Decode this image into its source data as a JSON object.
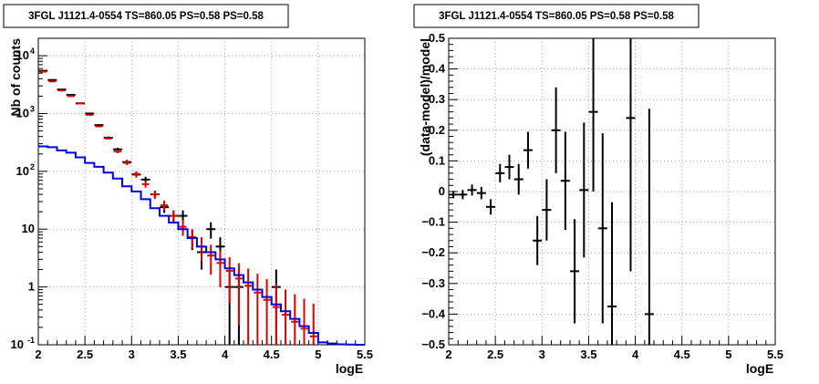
{
  "chart_data": [
    {
      "type": "histogram-errorbar",
      "title": "3FGL J1121.4-0554 TS=860.05 PS=0.58 PS=0.58",
      "xlabel": "logE",
      "ylabel": "Nb of counts",
      "yscale": "log",
      "xlim": [
        2,
        5.5
      ],
      "ylim": [
        0.1,
        20000
      ],
      "grid": true,
      "x_ticks": [
        {
          "v": 2,
          "label": "2"
        },
        {
          "v": 2.5,
          "label": "2.5"
        },
        {
          "v": 3,
          "label": "3"
        },
        {
          "v": 3.5,
          "label": "3.5"
        },
        {
          "v": 4,
          "label": "4"
        },
        {
          "v": 4.5,
          "label": "4.5"
        },
        {
          "v": 5,
          "label": "5"
        },
        {
          "v": 5.5,
          "label": "5.5"
        }
      ],
      "y_ticks": [
        {
          "v": 0.1,
          "label": "10",
          "exp": "-1"
        },
        {
          "v": 1,
          "label": "1",
          "exp": ""
        },
        {
          "v": 10,
          "label": "10",
          "exp": ""
        },
        {
          "v": 100,
          "label": "10",
          "exp": "2"
        },
        {
          "v": 1000,
          "label": "10",
          "exp": "3"
        },
        {
          "v": 10000,
          "label": "10",
          "exp": "4"
        }
      ],
      "series": [
        {
          "kind": "data-points",
          "color": "#000000",
          "points": [
            {
              "x": 2.05,
              "y": 5500
            },
            {
              "x": 2.15,
              "y": 3800
            },
            {
              "x": 2.25,
              "y": 2600
            },
            {
              "x": 2.35,
              "y": 2100
            },
            {
              "x": 2.45,
              "y": 1500
            },
            {
              "x": 2.55,
              "y": 1000
            },
            {
              "x": 2.65,
              "y": 630
            },
            {
              "x": 2.75,
              "y": 380
            },
            {
              "x": 2.85,
              "y": 240
            },
            {
              "x": 2.95,
              "y": 145
            },
            {
              "x": 3.05,
              "y": 88
            },
            {
              "x": 3.15,
              "y": 72
            },
            {
              "x": 3.25,
              "y": 40
            },
            {
              "x": 3.35,
              "y": 24
            },
            {
              "x": 3.45,
              "y": 17
            },
            {
              "x": 3.55,
              "y": 17
            },
            {
              "x": 3.65,
              "y": 7
            },
            {
              "x": 3.75,
              "y": 4
            },
            {
              "x": 3.85,
              "y": 10
            },
            {
              "x": 3.95,
              "y": 5
            },
            {
              "x": 4.05,
              "y": 1
            },
            {
              "x": 4.15,
              "y": 1
            },
            {
              "x": 4.55,
              "y": 1
            }
          ]
        },
        {
          "kind": "model-points",
          "color": "#dd0000",
          "points": [
            {
              "x": 2.05,
              "y": 5300
            },
            {
              "x": 2.15,
              "y": 3600
            },
            {
              "x": 2.25,
              "y": 2500
            },
            {
              "x": 2.35,
              "y": 2000
            },
            {
              "x": 2.45,
              "y": 1500
            },
            {
              "x": 2.55,
              "y": 950
            },
            {
              "x": 2.65,
              "y": 600
            },
            {
              "x": 2.75,
              "y": 370
            },
            {
              "x": 2.85,
              "y": 220
            },
            {
              "x": 2.95,
              "y": 140
            },
            {
              "x": 3.05,
              "y": 90
            },
            {
              "x": 3.15,
              "y": 60
            },
            {
              "x": 3.25,
              "y": 40
            },
            {
              "x": 3.35,
              "y": 26
            },
            {
              "x": 3.45,
              "y": 17
            },
            {
              "x": 3.55,
              "y": 11
            },
            {
              "x": 3.65,
              "y": 7.3
            },
            {
              "x": 3.75,
              "y": 5
            },
            {
              "x": 3.85,
              "y": 3.5
            },
            {
              "x": 3.95,
              "y": 2.6
            },
            {
              "x": 4.05,
              "y": 1.9
            },
            {
              "x": 4.15,
              "y": 1.4
            },
            {
              "x": 4.25,
              "y": 1.05
            },
            {
              "x": 4.35,
              "y": 0.8
            },
            {
              "x": 4.45,
              "y": 0.6
            },
            {
              "x": 4.55,
              "y": 0.45
            },
            {
              "x": 4.65,
              "y": 0.33
            },
            {
              "x": 4.75,
              "y": 0.25
            },
            {
              "x": 4.85,
              "y": 0.19
            },
            {
              "x": 4.95,
              "y": 0.14
            }
          ]
        },
        {
          "kind": "step-line",
          "color": "#0000dd",
          "bins": [
            {
              "x": 2.05,
              "y": 270
            },
            {
              "x": 2.15,
              "y": 262
            },
            {
              "x": 2.25,
              "y": 230
            },
            {
              "x": 2.35,
              "y": 210
            },
            {
              "x": 2.45,
              "y": 175
            },
            {
              "x": 2.55,
              "y": 140
            },
            {
              "x": 2.65,
              "y": 120
            },
            {
              "x": 2.75,
              "y": 95
            },
            {
              "x": 2.85,
              "y": 75
            },
            {
              "x": 2.95,
              "y": 55
            },
            {
              "x": 3.05,
              "y": 45
            },
            {
              "x": 3.15,
              "y": 33
            },
            {
              "x": 3.25,
              "y": 23
            },
            {
              "x": 3.35,
              "y": 17
            },
            {
              "x": 3.45,
              "y": 13
            },
            {
              "x": 3.55,
              "y": 10
            },
            {
              "x": 3.65,
              "y": 7
            },
            {
              "x": 3.75,
              "y": 5
            },
            {
              "x": 3.85,
              "y": 4
            },
            {
              "x": 3.95,
              "y": 3
            },
            {
              "x": 4.05,
              "y": 2.1
            },
            {
              "x": 4.15,
              "y": 1.6
            },
            {
              "x": 4.25,
              "y": 1.2
            },
            {
              "x": 4.35,
              "y": 0.9
            },
            {
              "x": 4.45,
              "y": 0.67
            },
            {
              "x": 4.55,
              "y": 0.5
            },
            {
              "x": 4.65,
              "y": 0.38
            },
            {
              "x": 4.75,
              "y": 0.28
            },
            {
              "x": 4.85,
              "y": 0.21
            },
            {
              "x": 4.95,
              "y": 0.16
            },
            {
              "x": 5.05,
              "y": 0.11
            },
            {
              "x": 5.15,
              "y": 0.105
            },
            {
              "x": 5.25,
              "y": 0.102
            },
            {
              "x": 5.35,
              "y": 0.101
            },
            {
              "x": 5.45,
              "y": 0.1
            }
          ]
        }
      ]
    },
    {
      "type": "scatter-errorbar",
      "title": "3FGL J1121.4-0554 TS=860.05 PS=0.58 PS=0.58",
      "xlabel": "logE",
      "ylabel": "(data-model)/model",
      "yscale": "linear",
      "xlim": [
        2,
        5.5
      ],
      "ylim": [
        -0.5,
        0.5
      ],
      "grid": true,
      "x_ticks": [
        {
          "v": 2,
          "label": "2"
        },
        {
          "v": 2.5,
          "label": "2.5"
        },
        {
          "v": 3,
          "label": "3"
        },
        {
          "v": 3.5,
          "label": "3.5"
        },
        {
          "v": 4,
          "label": "4"
        },
        {
          "v": 4.5,
          "label": "4.5"
        },
        {
          "v": 5,
          "label": "5"
        },
        {
          "v": 5.5,
          "label": "5.5"
        }
      ],
      "y_ticks": [
        {
          "v": -0.5,
          "label": "−0.5"
        },
        {
          "v": -0.4,
          "label": "−0.4"
        },
        {
          "v": -0.3,
          "label": "−0.3"
        },
        {
          "v": -0.2,
          "label": "−0.2"
        },
        {
          "v": -0.1,
          "label": "−0.1"
        },
        {
          "v": 0,
          "label": "0"
        },
        {
          "v": 0.1,
          "label": "0.1"
        },
        {
          "v": 0.2,
          "label": "0.2"
        },
        {
          "v": 0.3,
          "label": "0.3"
        },
        {
          "v": 0.4,
          "label": "0.4"
        },
        {
          "v": 0.5,
          "label": "0.5"
        }
      ],
      "series": [
        {
          "kind": "data-points",
          "color": "#000000",
          "points": [
            {
              "x": 2.05,
              "y": -0.01,
              "err": 0.012
            },
            {
              "x": 2.15,
              "y": -0.01,
              "err": 0.015
            },
            {
              "x": 2.25,
              "y": 0.005,
              "err": 0.018
            },
            {
              "x": 2.35,
              "y": -0.005,
              "err": 0.02
            },
            {
              "x": 2.45,
              "y": -0.05,
              "err": 0.025
            },
            {
              "x": 2.55,
              "y": 0.06,
              "err": 0.03
            },
            {
              "x": 2.65,
              "y": 0.08,
              "err": 0.04
            },
            {
              "x": 2.75,
              "y": 0.04,
              "err": 0.05
            },
            {
              "x": 2.85,
              "y": 0.135,
              "err": 0.06
            },
            {
              "x": 2.95,
              "y": -0.16,
              "err": 0.08
            },
            {
              "x": 3.05,
              "y": -0.06,
              "err": 0.1
            },
            {
              "x": 3.15,
              "y": 0.2,
              "err": 0.14
            },
            {
              "x": 3.25,
              "y": 0.035,
              "err": 0.16
            },
            {
              "x": 3.35,
              "y": -0.26,
              "err": 0.17
            },
            {
              "x": 3.45,
              "y": 0.005,
              "err": 0.22
            },
            {
              "x": 3.55,
              "y": 0.26,
              "err": 0.26
            },
            {
              "x": 3.65,
              "y": -0.12,
              "err": 0.31
            },
            {
              "x": 3.75,
              "y": -0.375,
              "err": 0.34
            },
            {
              "x": 3.95,
              "y": 0.24,
              "err": 0.5
            },
            {
              "x": 4.15,
              "y": -0.4,
              "err": 0.67
            }
          ]
        }
      ]
    }
  ]
}
